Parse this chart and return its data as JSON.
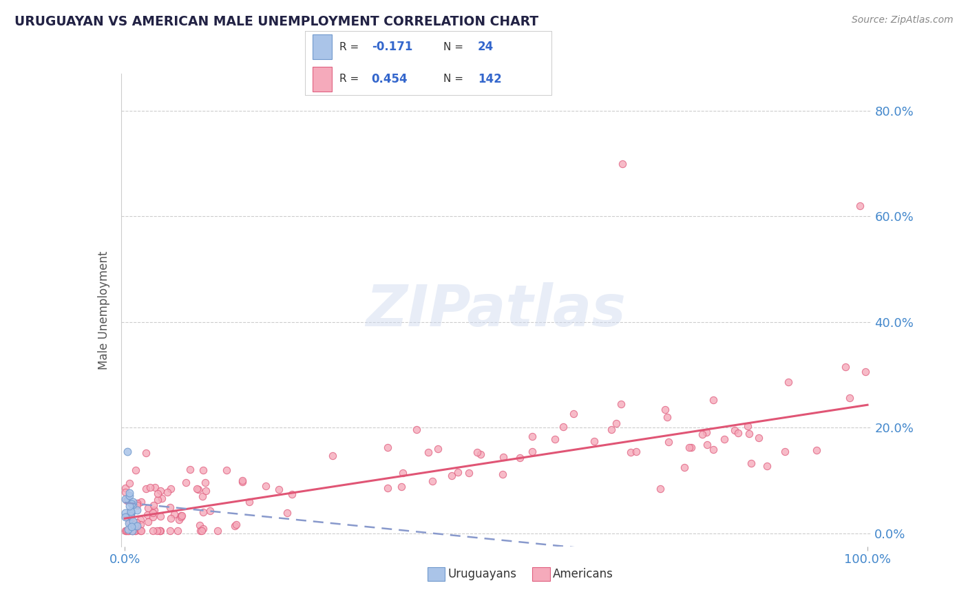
{
  "title": "URUGUAYAN VS AMERICAN MALE UNEMPLOYMENT CORRELATION CHART",
  "source": "Source: ZipAtlas.com",
  "ylabel": "Male Unemployment",
  "ytick_labels": [
    "0.0%",
    "20.0%",
    "40.0%",
    "60.0%",
    "80.0%"
  ],
  "ytick_values": [
    0.0,
    0.2,
    0.4,
    0.6,
    0.8
  ],
  "legend_uruguayans": "Uruguayans",
  "legend_americans": "Americans",
  "R_uruguayan": -0.171,
  "N_uruguayan": 24,
  "R_american": 0.454,
  "N_american": 142,
  "color_uruguayan_face": "#aac4e8",
  "color_uruguayan_edge": "#7099cc",
  "color_american_face": "#f5aabb",
  "color_american_edge": "#e06080",
  "color_uru_line": "#8899cc",
  "color_ame_line": "#e05575",
  "watermark": "ZIPatlas",
  "background_color": "#ffffff",
  "slope_ame": 0.215,
  "intercept_ame": 0.028,
  "slope_uru": -0.14,
  "intercept_uru": 0.058
}
